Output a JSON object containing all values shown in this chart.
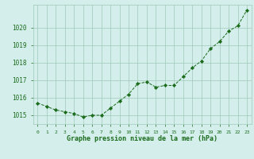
{
  "x": [
    0,
    1,
    2,
    3,
    4,
    5,
    6,
    7,
    8,
    9,
    10,
    11,
    12,
    13,
    14,
    15,
    16,
    17,
    18,
    19,
    20,
    21,
    22,
    23
  ],
  "y": [
    1015.7,
    1015.5,
    1015.3,
    1015.2,
    1015.1,
    1014.9,
    1015.0,
    1015.0,
    1015.4,
    1015.8,
    1016.2,
    1016.8,
    1016.9,
    1016.6,
    1016.7,
    1016.7,
    1017.2,
    1017.7,
    1018.1,
    1018.8,
    1019.2,
    1019.8,
    1020.1,
    1021.0
  ],
  "line_color": "#1a6b1a",
  "marker": "D",
  "marker_size": 2.2,
  "bg_color": "#d4eeec",
  "grid_color": "#a0c8b8",
  "xlabel": "Graphe pression niveau de la mer (hPa)",
  "xlabel_color": "#1a6b1a",
  "tick_color": "#1a6b1a",
  "ymin": 1014.5,
  "ymax": 1021.3,
  "yticks": [
    1015,
    1016,
    1017,
    1018,
    1019,
    1020
  ],
  "xlim_left": -0.5,
  "xlim_right": 23.5
}
